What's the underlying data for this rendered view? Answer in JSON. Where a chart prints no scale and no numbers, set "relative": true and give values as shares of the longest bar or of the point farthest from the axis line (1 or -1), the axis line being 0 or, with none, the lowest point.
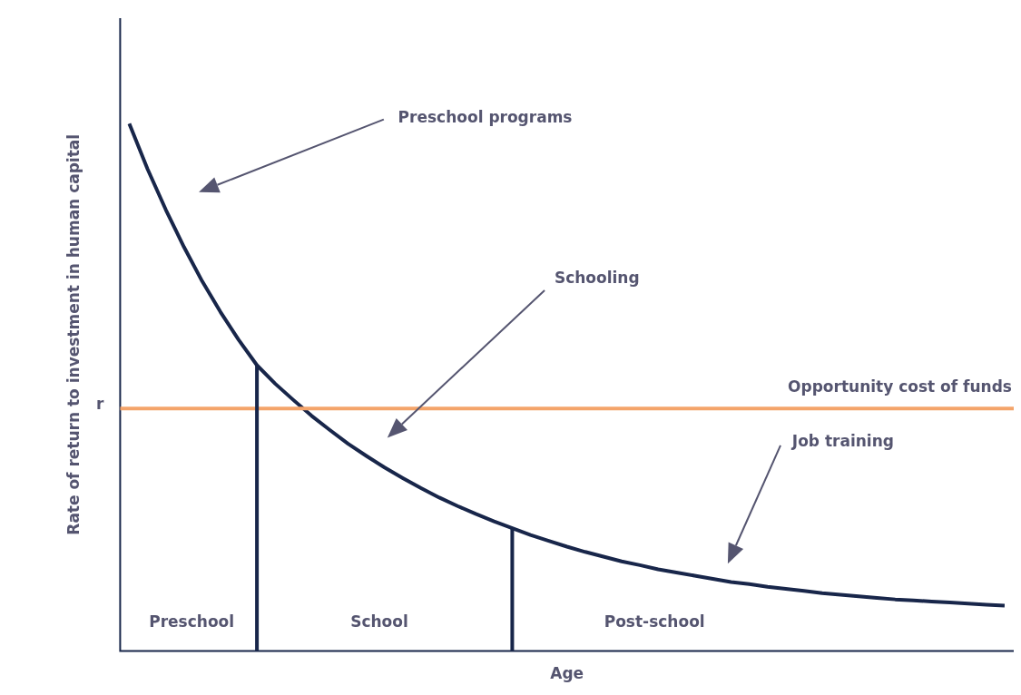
{
  "chart_data": {
    "type": "line",
    "xlabel": "Age",
    "ylabel": "Rate of return to investment in human capital",
    "relative": true,
    "categories": [
      null,
      null,
      null,
      null,
      null,
      null,
      null,
      null,
      null,
      null,
      null,
      null,
      null,
      null,
      null,
      null,
      null,
      null,
      null,
      null,
      null,
      null,
      null,
      null,
      null,
      null,
      null,
      null,
      null,
      null,
      null,
      null,
      null,
      null,
      null,
      null,
      null,
      null,
      null,
      null,
      null,
      null,
      null,
      null,
      null,
      null,
      null,
      null,
      null
    ],
    "series": [
      {
        "color": "#18264a",
        "values": [
          1.0,
          0.914,
          0.837,
          0.766,
          0.701,
          0.643,
          0.59,
          0.542,
          0.507,
          0.476,
          0.446,
          0.419,
          0.393,
          0.37,
          0.348,
          0.328,
          0.309,
          0.291,
          0.275,
          0.26,
          0.246,
          0.233,
          0.22,
          0.209,
          0.198,
          0.188,
          0.179,
          0.17,
          0.163,
          0.155,
          0.149,
          0.143,
          0.137,
          0.131,
          0.127,
          0.122,
          0.118,
          0.114,
          0.11,
          0.107,
          0.104,
          0.101,
          0.098,
          0.096,
          0.094,
          0.092,
          0.09,
          0.088,
          0.086
        ]
      }
    ],
    "ref_lines": [
      {
        "axis": "y",
        "value": 0.46,
        "label": "Opportunity cost of funds",
        "color": "#f4a46a"
      }
    ],
    "annotations": [
      "Preschool programs",
      "Schooling",
      "Job training",
      "Preschool",
      "School",
      "Post-school",
      "r"
    ],
    "marker": "none",
    "line_style": "solid"
  }
}
